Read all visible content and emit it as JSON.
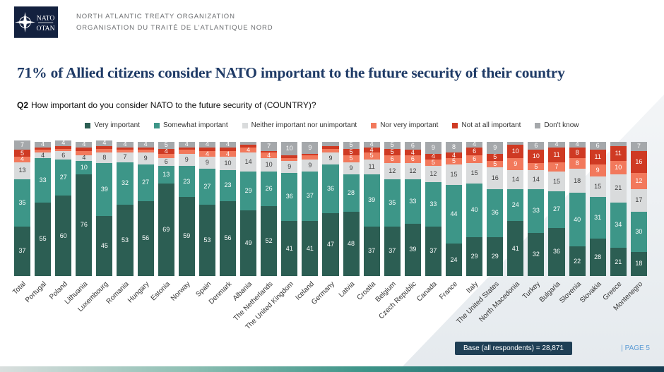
{
  "header": {
    "logo_top": "NATO",
    "logo_bottom": "OTAN",
    "org_line1": "NORTH ATLANTIC TREATY ORGANIZATION",
    "org_line2": "ORGANISATION DU TRAITÉ DE L'ATLANTIQUE NORD"
  },
  "title": "71% of Allied citizens consider NATO important to the future security of their country",
  "question": {
    "prefix": "Q2",
    "text": "How important do you consider NATO to the future security of (COUNTRY)?"
  },
  "chart_data": {
    "type": "bar",
    "stacked": true,
    "unit": "percent",
    "ylim": [
      0,
      100
    ],
    "legend_position": "top",
    "categories": [
      "Total",
      "Portugal",
      "Poland",
      "Lithuania",
      "Luxembourg",
      "Romania",
      "Hungary",
      "Estonia",
      "Norway",
      "Spain",
      "Denmark",
      "Albania",
      "The Netherlands",
      "The United Kingdom",
      "Iceland",
      "Germany",
      "Latvia",
      "Croatia",
      "Belgium",
      "Czech Republic",
      "Canada",
      "France",
      "Italy",
      "The United States",
      "North Macedonia",
      "Turkey",
      "Bulgaria",
      "Slovenia",
      "Slovakia",
      "Greece",
      "Montenegro"
    ],
    "series": [
      {
        "key": "very_important",
        "name": "Very important",
        "color": "#2c5e53",
        "label_style": "light",
        "values": [
          37,
          55,
          60,
          76,
          45,
          53,
          56,
          69,
          59,
          53,
          56,
          49,
          52,
          41,
          41,
          47,
          48,
          37,
          37,
          39,
          37,
          24,
          29,
          29,
          41,
          32,
          36,
          22,
          28,
          21,
          18
        ]
      },
      {
        "key": "somewhat_important",
        "name": "Somewhat important",
        "color": "#3d9688",
        "label_style": "light",
        "values": [
          35,
          33,
          27,
          10,
          39,
          32,
          27,
          13,
          23,
          27,
          23,
          29,
          26,
          36,
          37,
          36,
          28,
          39,
          35,
          33,
          33,
          44,
          40,
          36,
          24,
          33,
          27,
          40,
          31,
          34,
          30
        ]
      },
      {
        "key": "neither_important_nor_unimportant",
        "name": "Neither important nor unimportant",
        "color": "#d9dbdc",
        "label_style": "dark",
        "values": [
          13,
          4,
          6,
          4,
          8,
          7,
          9,
          6,
          9,
          9,
          10,
          14,
          10,
          9,
          9,
          9,
          9,
          11,
          12,
          12,
          12,
          15,
          15,
          16,
          14,
          14,
          15,
          18,
          15,
          21,
          17
        ]
      },
      {
        "key": "nor_very_important",
        "name": "Nor very important",
        "color": "#f2795c",
        "label_style": "light",
        "values": [
          4,
          2,
          2,
          3,
          3,
          2,
          2,
          3,
          3,
          4,
          4,
          4,
          4,
          2,
          3,
          3,
          5,
          5,
          6,
          6,
          5,
          5,
          6,
          5,
          9,
          5,
          7,
          8,
          9,
          10,
          12
        ]
      },
      {
        "key": "not_at_all_important",
        "name": "Not at all important",
        "color": "#cf3a23",
        "label_style": "light",
        "values": [
          5,
          2,
          2,
          3,
          2,
          2,
          2,
          4,
          2,
          3,
          3,
          2,
          1,
          2,
          1,
          2,
          5,
          4,
          5,
          4,
          4,
          4,
          6,
          5,
          10,
          10,
          11,
          8,
          11,
          11,
          16
        ]
      },
      {
        "key": "dont_know",
        "name": "Don't know",
        "color": "#a5a8ab",
        "label_style": "light",
        "values": [
          7,
          4,
          4,
          4,
          4,
          4,
          4,
          5,
          4,
          4,
          4,
          2,
          7,
          10,
          9,
          3,
          5,
          4,
          5,
          6,
          9,
          8,
          4,
          9,
          2,
          6,
          4,
          4,
          6,
          3,
          7
        ]
      }
    ]
  },
  "footer": {
    "base_label": "Base (all respondents) = 28,871",
    "page_label": "| PAGE 5"
  }
}
